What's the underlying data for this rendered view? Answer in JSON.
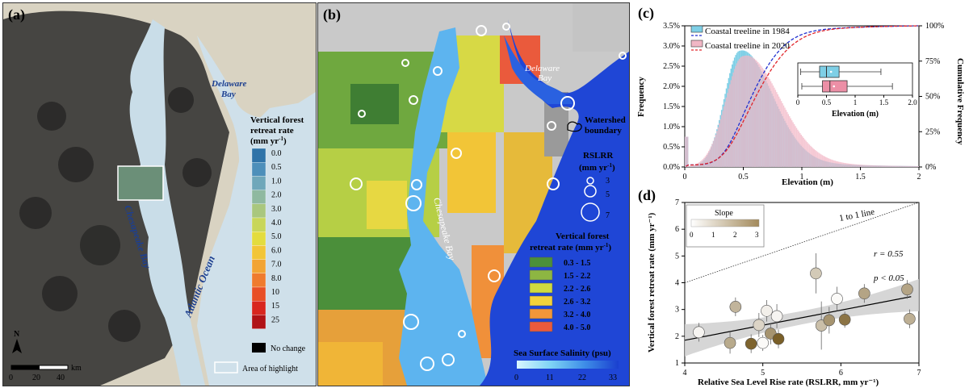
{
  "panel_a": {
    "label": "(a)",
    "water_labels": {
      "delaware": "Delaware Bay",
      "chesapeake": "Chesapeake Bay",
      "atlantic": "Atlantic Ocean"
    },
    "legend_title": [
      "Vertical forest",
      "retreat rate",
      "(mm yr",
      "-1",
      ")"
    ],
    "legend_ticks": [
      "0.0",
      "0.5",
      "1.0",
      "2.0",
      "3.0",
      "4.0",
      "5.0",
      "6.0",
      "7.0",
      "8.0",
      "10",
      "15",
      "25"
    ],
    "legend_colors": [
      "#2f73a8",
      "#4d8fba",
      "#6fa7ba",
      "#8fb9a0",
      "#a9c77e",
      "#c8d65a",
      "#e3dc3e",
      "#f2c537",
      "#f2a434",
      "#ef7b2e",
      "#e84f26",
      "#d8261f",
      "#b01216"
    ],
    "no_change_label": "No change",
    "highlight_label": "Area of highlight",
    "north": "N",
    "scale_ticks": [
      "0",
      "20",
      "40"
    ],
    "scale_unit": "km"
  },
  "panel_b": {
    "label": "(b)",
    "water_labels": {
      "delaware": "Delaware Bay",
      "chesapeake": "Chesapeake Bay"
    },
    "watershed_label": [
      "Watershed",
      "boundary"
    ],
    "rslrr_title": [
      "RSLRR",
      "(mm yr",
      "-1",
      ")"
    ],
    "rslrr_values": [
      "3",
      "5",
      "7"
    ],
    "retreat_title": [
      "Vertical forest",
      "retreat rate (mm yr",
      "-1",
      ")"
    ],
    "retreat_classes": [
      {
        "range": "0.3  -  1.5",
        "color": "#4b8f3a"
      },
      {
        "range": "1.5  -  2.2",
        "color": "#8db642"
      },
      {
        "range": "2.2  -  2.6",
        "color": "#cfdb3f"
      },
      {
        "range": "2.6  -  3.2",
        "color": "#f3d23b"
      },
      {
        "range": "3.2  -  4.0",
        "color": "#f2963a"
      },
      {
        "range": "4.0  -  5.0",
        "color": "#ea5a3c"
      }
    ],
    "salinity_title": "Sea Surface Salinity (psu)",
    "salinity_ticks": [
      "0",
      "11",
      "22",
      "33"
    ],
    "salinity_colors": [
      "#d9f6ff",
      "#7fd4f5",
      "#3f8fe8",
      "#1a3fcf"
    ]
  },
  "chart_data": [
    {
      "panel": "(c)",
      "type": "area",
      "xlabel": "Elevation (m)",
      "ylabel": "Frequency",
      "y2label": "Cumulative Frequency",
      "xlim": [
        0,
        2
      ],
      "ylim": [
        0,
        3.5
      ],
      "y2lim": [
        0,
        100
      ],
      "xticks": [
        "0",
        "0.5",
        "1",
        "1.5",
        "2"
      ],
      "yticks": [
        "0.0%",
        "0.5%",
        "1.0%",
        "1.5%",
        "2.0%",
        "2.5%",
        "3.0%",
        "3.5%"
      ],
      "y2ticks": [
        "0%",
        "25%",
        "50%",
        "75%",
        "100%"
      ],
      "series": [
        {
          "name": "Coastal treeline in 1984",
          "color": "#4aa9c9",
          "cdf_color": "#1f2fd0",
          "peak": 0.47,
          "sigma_left": 0.13,
          "sigma_right": 0.27,
          "peak_freq": 2.88
        },
        {
          "name": "Coastal treeline in 2020",
          "color": "#e7a3b6",
          "cdf_color": "#e0242a",
          "peak": 0.5,
          "sigma_left": 0.15,
          "sigma_right": 0.3,
          "peak_freq": 2.75
        }
      ],
      "inset_boxplot": {
        "xlabel": "Elevation (m)",
        "xticks": [
          "0",
          "0.5",
          "1",
          "1.5",
          "2.0"
        ],
        "xlim": [
          0,
          2
        ],
        "boxes": [
          {
            "name": "1984",
            "color": "#7ecfe6",
            "whisker_low": 0.05,
            "q1": 0.38,
            "median": 0.5,
            "mean": 0.58,
            "q3": 0.72,
            "whisker_high": 1.45
          },
          {
            "name": "2020",
            "color": "#ec8fa6",
            "whisker_low": 0.07,
            "q1": 0.43,
            "median": 0.56,
            "mean": 0.63,
            "q3": 0.86,
            "whisker_high": 1.65
          }
        ]
      }
    },
    {
      "panel": "(d)",
      "type": "scatter",
      "xlabel": "Relative Sea Level Rise rate (RSLRR, mm yr⁻¹)",
      "ylabel": "Vertical forest retreat rate (mm yr⁻¹)",
      "xlim": [
        4,
        7
      ],
      "ylim": [
        1,
        7
      ],
      "xticks": [
        "4",
        "5",
        "6",
        "7"
      ],
      "yticks": [
        "1",
        "2",
        "3",
        "4",
        "5",
        "6",
        "7"
      ],
      "one_to_one_label": "1 to 1 line",
      "stats": {
        "r": "r = 0.55",
        "p": "p < 0.05"
      },
      "slope_legend": {
        "title": "Slope",
        "ticks": [
          "0",
          "1",
          "2",
          "3"
        ],
        "colors": [
          "#ffffff",
          "#a38a5b"
        ]
      },
      "regression": {
        "x": [
          4,
          6.9
        ],
        "y": [
          1.85,
          3.48
        ]
      },
      "points": [
        {
          "x": 4.18,
          "y": 2.15,
          "err": 0.35,
          "slope": 0.2
        },
        {
          "x": 4.58,
          "y": 1.75,
          "err": 0.4,
          "slope": 1.6
        },
        {
          "x": 4.65,
          "y": 3.1,
          "err": 0.35,
          "slope": 1.4
        },
        {
          "x": 4.85,
          "y": 1.72,
          "err": 0.35,
          "slope": 2.9
        },
        {
          "x": 4.95,
          "y": 2.42,
          "err": 0.45,
          "slope": 0.8
        },
        {
          "x": 5.0,
          "y": 1.75,
          "err": 0.3,
          "slope": 0.1
        },
        {
          "x": 5.05,
          "y": 2.95,
          "err": 0.4,
          "slope": 0.3
        },
        {
          "x": 5.1,
          "y": 2.1,
          "err": 0.4,
          "slope": 2.0
        },
        {
          "x": 5.18,
          "y": 2.75,
          "err": 0.45,
          "slope": 0.2
        },
        {
          "x": 5.2,
          "y": 1.9,
          "err": 0.35,
          "slope": 3.0
        },
        {
          "x": 5.68,
          "y": 4.35,
          "err": 0.75,
          "slope": 1.0
        },
        {
          "x": 5.75,
          "y": 2.4,
          "err": 0.9,
          "slope": 1.2
        },
        {
          "x": 5.85,
          "y": 2.6,
          "err": 0.5,
          "slope": 2.0
        },
        {
          "x": 5.95,
          "y": 3.4,
          "err": 0.45,
          "slope": 0.1
        },
        {
          "x": 6.05,
          "y": 2.62,
          "err": 0.3,
          "slope": 2.6
        },
        {
          "x": 6.3,
          "y": 3.6,
          "err": 0.35,
          "slope": 1.7
        },
        {
          "x": 6.85,
          "y": 3.75,
          "err": 0.35,
          "slope": 1.7
        },
        {
          "x": 6.88,
          "y": 2.65,
          "err": 0.35,
          "slope": 1.5
        }
      ]
    }
  ]
}
